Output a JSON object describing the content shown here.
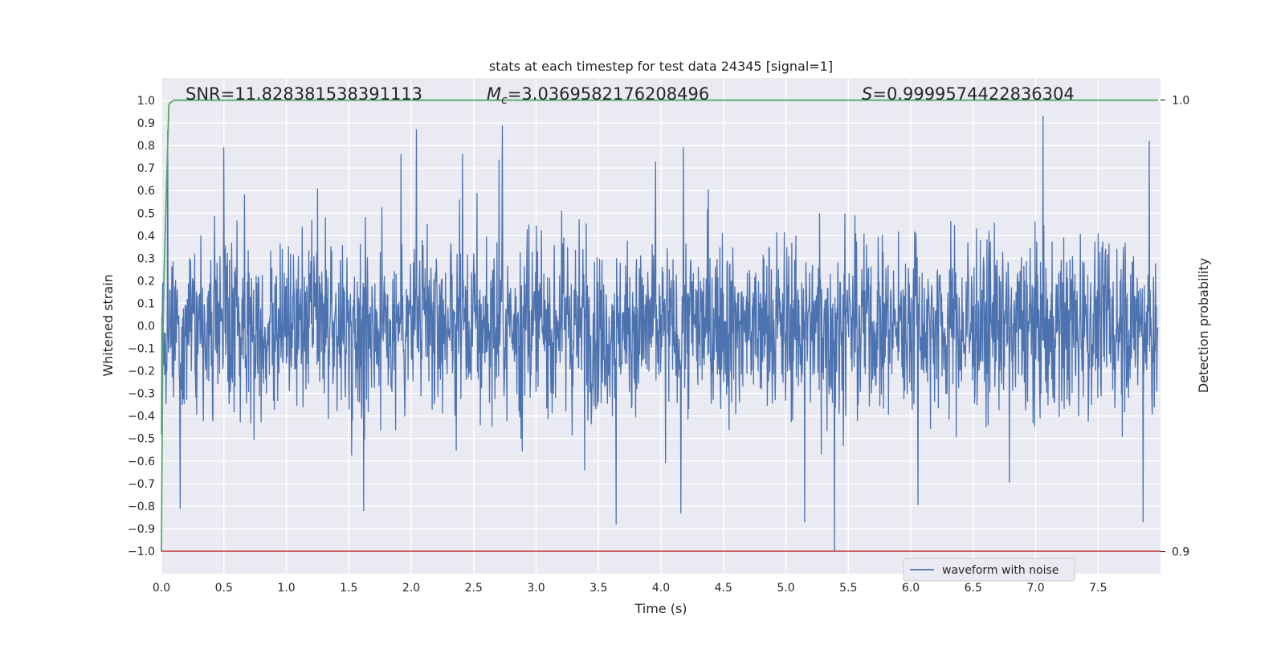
{
  "chart_data": {
    "type": "line",
    "title": "stats at each timestep for test data 24345 [signal=1]",
    "xlabel": "Time (s)",
    "ylabel": "Whitened strain",
    "ylabel_right": "Detection probability",
    "xlim": [
      0.0,
      8.0
    ],
    "ylim": [
      -1.1,
      1.1
    ],
    "ylim_right": [
      0.9,
      1.0
    ],
    "grid": true,
    "x_ticks": [
      "0.0",
      "0.5",
      "1.0",
      "1.5",
      "2.0",
      "2.5",
      "3.0",
      "3.5",
      "4.0",
      "4.5",
      "5.0",
      "5.5",
      "6.0",
      "6.5",
      "7.0",
      "7.5"
    ],
    "y_ticks": [
      "1.0",
      "0.9",
      "0.8",
      "0.7",
      "0.6",
      "0.5",
      "0.4",
      "0.3",
      "0.2",
      "0.1",
      "0.0",
      "−0.1",
      "−0.2",
      "−0.3",
      "−0.4",
      "−0.5",
      "−0.6",
      "−0.7",
      "−0.8",
      "−0.9",
      "−1.0"
    ],
    "y_ticks_right": [
      "1.0",
      "0.9"
    ],
    "annotations": {
      "snr": "SNR=11.828381538391113",
      "mc_symbol": "M",
      "mc_sub": "c",
      "mc_value": "=3.0369582176208496",
      "s_symbol": "S",
      "s_value": "=0.9999574422836304"
    },
    "legend": {
      "placement": "lower-right",
      "entries": [
        "waveform with noise"
      ]
    },
    "series": [
      {
        "name": "waveform with noise",
        "color": "#4c72b0",
        "kind": "noise",
        "envelope": {
          "typical_max": 0.45,
          "peak_max": 0.93,
          "typical_min": -0.45,
          "peak_min": -1.0
        },
        "peaks": [
          {
            "x": 2.04,
            "y": 0.87
          },
          {
            "x": 7.06,
            "y": 0.93
          },
          {
            "x": 7.91,
            "y": 0.82
          },
          {
            "x": 0.05,
            "y": 0.87
          },
          {
            "x": 0.5,
            "y": 0.79
          },
          {
            "x": 1.92,
            "y": 0.76
          },
          {
            "x": 2.41,
            "y": 0.76
          },
          {
            "x": 4.18,
            "y": 0.79
          },
          {
            "x": 5.39,
            "y": -1.0
          },
          {
            "x": 3.64,
            "y": -0.88
          },
          {
            "x": 4.16,
            "y": -0.83
          },
          {
            "x": 5.15,
            "y": -0.87
          },
          {
            "x": 7.86,
            "y": -0.87
          },
          {
            "x": 1.62,
            "y": -0.82
          },
          {
            "x": 0.15,
            "y": -0.81
          }
        ]
      },
      {
        "name": "",
        "color": "#55a868",
        "axis": "right",
        "x": [
          0.0,
          0.01,
          0.02,
          0.035,
          0.05,
          0.06,
          0.075,
          0.1,
          1.0,
          2.0,
          3.0,
          4.0,
          5.0,
          6.0,
          7.0,
          7.98
        ],
        "y": [
          0.9,
          0.945,
          0.96,
          0.975,
          0.99,
          0.999,
          0.9995,
          0.99996,
          0.99996,
          0.99996,
          0.99996,
          0.99996,
          0.99996,
          0.99996,
          0.99996,
          0.99996
        ]
      },
      {
        "name": "",
        "color": "#c44e52",
        "axis": "left",
        "x": [
          0.0,
          8.0
        ],
        "y": [
          -1.0,
          -1.0
        ]
      }
    ]
  }
}
